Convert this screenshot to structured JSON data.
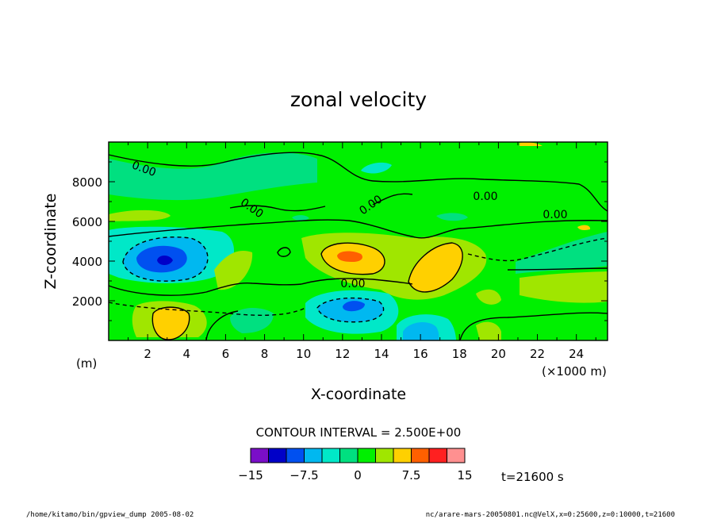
{
  "chart_data": {
    "type": "heatmap",
    "title": "zonal velocity",
    "xlabel": "X-coordinate",
    "ylabel": "Z-coordinate",
    "x_unit_label": "(×1000 m)",
    "y_unit_label": "(m)",
    "x_ticks": [
      "2",
      "4",
      "6",
      "8",
      "10",
      "12",
      "14",
      "16",
      "18",
      "20",
      "22",
      "24"
    ],
    "y_ticks": [
      "2000",
      "4000",
      "6000",
      "8000"
    ],
    "xlim": [
      0,
      25600
    ],
    "ylim": [
      0,
      10000
    ],
    "contour_interval_text": "CONTOUR INTERVAL = 2.500E+00",
    "contour_labels": [
      "0.00",
      "0.00",
      "0.00",
      "0.00",
      "0.00",
      "0.00"
    ],
    "colorbar": {
      "ticks": [
        "−15",
        "−7.5",
        "0",
        "7.5",
        "15"
      ],
      "colors": [
        "#7a0ec8",
        "#0000c8",
        "#0050f0",
        "#00b8f0",
        "#00e8c8",
        "#00e080",
        "#00f000",
        "#a0e600",
        "#ffd000",
        "#ff6000",
        "#ff2020",
        "#ff9090"
      ]
    },
    "time_label": "t=21600 s",
    "features": [
      {
        "x": 3.0,
        "z": 4000,
        "value": -12.5
      },
      {
        "x": 12.8,
        "z": 1900,
        "value": -10.0
      },
      {
        "x": 16.0,
        "z": 500,
        "value": -7.5
      },
      {
        "x": 12.5,
        "z": 4300,
        "value": 12.5
      },
      {
        "x": 16.7,
        "z": 3600,
        "value": 7.5
      },
      {
        "x": 3.2,
        "z": 1000,
        "value": 7.5
      },
      {
        "x": 23.5,
        "z": 2600,
        "value": 5.0
      }
    ]
  },
  "footer": {
    "left": "/home/kitamo/bin/gpview_dump  2005-08-02",
    "right": "nc/arare-mars-20050801.nc@VelX,x=0:25600,z=0:10000,t=21600"
  }
}
